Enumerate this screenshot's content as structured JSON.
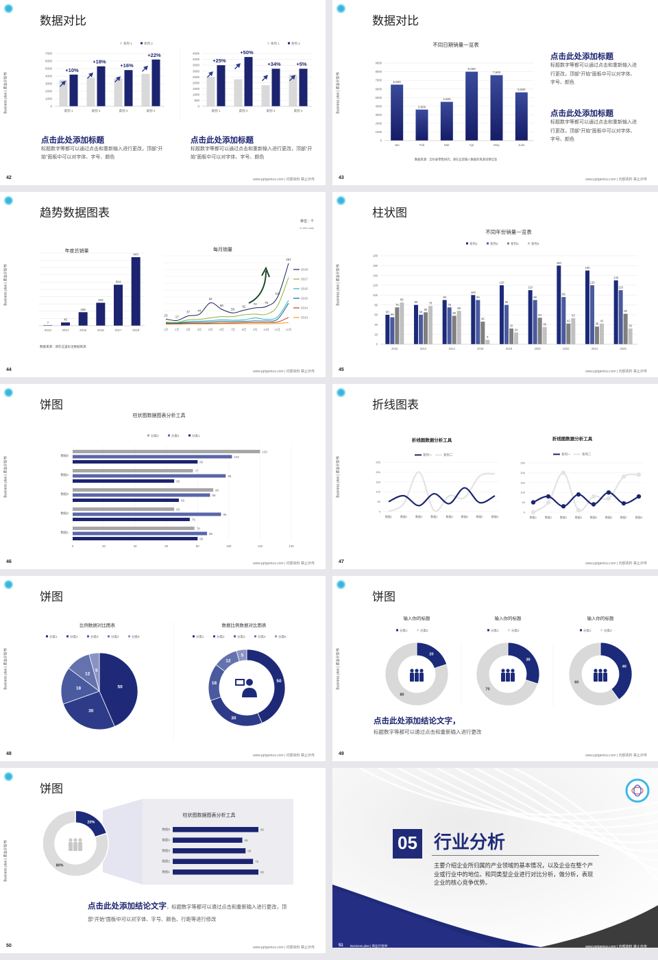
{
  "footer": {
    "url": "www.pptgenius.com | 内部资料 禁止外传",
    "side": "Business plan | 商业计划书"
  },
  "colors": {
    "navy": "#1c2470",
    "light_gray": "#d9d9d9",
    "background": "#e7e7eb"
  },
  "slides": [
    {
      "page": "42",
      "title": "数据对比",
      "blocks": [
        {
          "heading": "点击此处添加标题",
          "body": "标题数字等都可以通过点击和重新输入进行更改，顶部“开始”面板中可以对字体、字号、颜色"
        },
        {
          "heading": "点击此处添加标题",
          "body": "标题数字等都可以通过点击和重新输入进行更改，顶部“开始”面板中可以对字体、字号、颜色"
        }
      ]
    },
    {
      "page": "43",
      "title": "数据对比",
      "source": "数据来源：迈尔泰零售研究，请在这里输入数据的来源详情信息",
      "blocks": [
        {
          "heading": "点击此处添加标题",
          "body": "标题数字等都可以通过点击和重新输入进行更改，顶部“开始”面板中可以对字体、字号、颜色"
        },
        {
          "heading": "点击此处添加标题",
          "body": "标题数字等都可以通过点击和重新输入进行更改，顶部“开始”面板中可以对字体、字号、颜色"
        }
      ]
    },
    {
      "page": "44",
      "title": "趋势数据图表",
      "unit": "单位：个",
      "unit_en": "in 000 units",
      "source": "数据来源：请在这里标注数据来源"
    },
    {
      "page": "45",
      "title": "柱状图"
    },
    {
      "page": "46",
      "title": "饼图"
    },
    {
      "page": "47",
      "title": "折线图表"
    },
    {
      "page": "48",
      "title": "饼图"
    },
    {
      "page": "49",
      "title": "饼图",
      "conclusion": {
        "heading": "点击此处添加结论文字，",
        "body": "标题数字等都可以通过点击和重新输入进行更改"
      }
    },
    {
      "page": "50",
      "title": "饼图",
      "conclusion": {
        "heading": "点击此处添加结论文字",
        "body": "，标题数字等都可以通过点击和重新输入进行更改，顶部“开始”面板中可以对字体、字号、颜色、行距等进行修改"
      }
    },
    {
      "page": "51",
      "number": "05",
      "title": "行业分析",
      "description": "主要介绍企业所归属的产业领域的基本情况，以及企业在整个产业或行业中的地位。和同类型企业进行对比分析，做分析，表现企业的核心竞争优势。",
      "footer_label": "Business plan | 商业计划书"
    }
  ],
  "chart_data": [
    {
      "type": "bar",
      "categories": [
        "类别 1",
        "类别 2",
        "类别 3",
        "类别 4"
      ],
      "series": [
        {
          "name": "系列 1",
          "values": [
            3500,
            3800,
            3700,
            4300
          ],
          "color": "#d9d9d9"
        },
        {
          "name": "系列 2",
          "values": [
            4200,
            5300,
            4800,
            6200
          ],
          "color": "#1c2470"
        }
      ],
      "annotations": [
        "+10%",
        "+18%",
        "+16%",
        "+22%"
      ],
      "ylim": [
        0,
        7000
      ],
      "yticks": [
        0,
        1000,
        2000,
        3000,
        4000,
        5000,
        6000,
        7000
      ],
      "legend": "top-right",
      "grid": true
    },
    {
      "type": "bar",
      "categories": [
        "类别 1",
        "类别 2",
        "类别 3",
        "类别 4"
      ],
      "series": [
        {
          "name": "系列 1",
          "values": [
            2500,
            2300,
            1800,
            2700
          ],
          "color": "#d9d9d9"
        },
        {
          "name": "系列 2",
          "values": [
            3500,
            4200,
            3200,
            3200
          ],
          "color": "#1c2470"
        }
      ],
      "annotations": [
        "+25%",
        "+50%",
        "+34%",
        "+5%"
      ],
      "ylim": [
        0,
        4500
      ],
      "yticks": [
        0,
        500,
        1000,
        1500,
        2000,
        2500,
        3000,
        3500,
        4000,
        4500
      ],
      "legend": "top-right",
      "grid": true
    },
    {
      "type": "bar",
      "title": "不同日期销量一览表",
      "categories": [
        "Jan",
        "Feb",
        "Mar",
        "Apr",
        "May",
        "June"
      ],
      "series": [
        {
          "values": [
            6500,
            3600,
            4500,
            8000,
            7600,
            5600
          ],
          "color": "#1c2470"
        }
      ],
      "ylim": [
        0,
        9000
      ],
      "yticks": [
        0,
        1000,
        2000,
        3000,
        4000,
        5000,
        6000,
        7000,
        8000,
        9000
      ],
      "data_labels": true,
      "grid": true
    },
    {
      "type": "bar",
      "title": "年度总销量",
      "categories": [
        "2013",
        "2014",
        "2015",
        "2016",
        "2017",
        "2018"
      ],
      "series": [
        {
          "values": [
            7,
            45,
            186,
            316,
            564,
            943
          ],
          "color": "#1c2470"
        }
      ],
      "ylim": [
        0,
        1000
      ],
      "data_labels": true,
      "grid": true
    },
    {
      "type": "line",
      "title": "每月销量",
      "categories": [
        "1月",
        "2月",
        "3月",
        "4月",
        "5月",
        "6月",
        "7月",
        "8月",
        "9月",
        "10月",
        "11月",
        "12月"
      ],
      "series": [
        {
          "name": "2018",
          "color": "#1a1f5c",
          "values": [
            23,
            17,
            37,
            44,
            94,
            66,
            50,
            62,
            72,
            78,
            118,
            267
          ],
          "labels": true
        },
        {
          "name": "2017",
          "color": "#8cb43c",
          "values": [
            10,
            9,
            20,
            22,
            28,
            34,
            34,
            42,
            45,
            44,
            80,
            205
          ]
        },
        {
          "name": "2016",
          "color": "#2cb1c9",
          "values": [
            8,
            7,
            13,
            14,
            16,
            20,
            18,
            20,
            28,
            22,
            32,
            105
          ]
        },
        {
          "name": "2015",
          "color": "#1d5f8a",
          "values": [
            6,
            5,
            8,
            9,
            10,
            13,
            12,
            13,
            15,
            15,
            22,
            92
          ]
        },
        {
          "name": "2014",
          "color": "#b5441c",
          "values": [
            3,
            3,
            4,
            4,
            5,
            6,
            6,
            7,
            8,
            8,
            10,
            30
          ]
        },
        {
          "name": "2013",
          "color": "#f0a020",
          "values": [
            1,
            1,
            2,
            2,
            2,
            3,
            3,
            3,
            3,
            3,
            4,
            8
          ]
        }
      ],
      "ylim": [
        0,
        300
      ],
      "legend": "right",
      "smooth": true,
      "grid": true
    },
    {
      "type": "bar",
      "title": "不同年份销量一览表",
      "categories": [
        "2010",
        "2012",
        "2014",
        "2016",
        "2018",
        "2020",
        "2022",
        "2024",
        "2026"
      ],
      "series": [
        {
          "name": "系列1",
          "color": "#1b2a78",
          "values": [
            60,
            80,
            90,
            100,
            120,
            110,
            160,
            150,
            130
          ]
        },
        {
          "name": "系列2",
          "color": "#4a5a9e",
          "values": [
            55,
            60,
            75,
            90,
            80,
            90,
            96,
            120,
            110
          ]
        },
        {
          "name": "系列3",
          "color": "#7f7f7f",
          "values": [
            75,
            65,
            58,
            46,
            32,
            54,
            42,
            36,
            62
          ]
        },
        {
          "name": "系列4",
          "color": "#c0c0c0",
          "values": [
            85,
            78,
            68,
            9,
            24,
            35,
            53,
            42,
            32
          ]
        }
      ],
      "ylim": [
        0,
        180
      ],
      "yticks": [
        0,
        20,
        40,
        60,
        80,
        100,
        120,
        140,
        160,
        180
      ],
      "data_labels": true,
      "legend": "top",
      "grid": true
    },
    {
      "type": "bar",
      "orientation": "horizontal",
      "title": "柱状图数据图表分析工具",
      "categories": [
        "数据1",
        "数据2",
        "数据3",
        "数据4",
        "数据5"
      ],
      "series": [
        {
          "name": "分类1",
          "color": "#1c2470",
          "values": [
            80,
            75,
            68,
            65,
            80
          ]
        },
        {
          "name": "分类2",
          "color": "#5a66a8",
          "values": [
            86,
            95,
            88,
            98,
            102
          ]
        },
        {
          "name": "分类3",
          "color": "#a6a6a6",
          "values": [
            78,
            65,
            90,
            77,
            120
          ]
        }
      ],
      "xlim": [
        0,
        140
      ],
      "xticks": [
        0,
        20,
        40,
        60,
        80,
        100,
        120,
        140
      ],
      "data_labels": true,
      "legend": "top",
      "grid": true
    },
    {
      "type": "line",
      "title": "折线图数据分析工具",
      "categories": [
        "数据1",
        "数据2",
        "数据3",
        "数据4",
        "数据5",
        "数据6",
        "数据7",
        "数据8"
      ],
      "series": [
        {
          "name": "系列一",
          "color": "#1c2470",
          "values": [
            50,
            80,
            30,
            90,
            40,
            120,
            45,
            80
          ]
        },
        {
          "name": "系列二",
          "color": "#e3e3e3",
          "values": [
            0,
            40,
            200,
            5,
            80,
            70,
            180,
            190
          ]
        }
      ],
      "ylim": [
        0,
        250
      ],
      "yticks": [
        0,
        50,
        100,
        150,
        200,
        250
      ],
      "smooth": true,
      "legend": "top"
    },
    {
      "type": "line",
      "title": "折线图数据分析工具",
      "categories": [
        "数据1",
        "数据2",
        "数据3",
        "数据4",
        "数据5",
        "数据6",
        "数据7",
        "数据8"
      ],
      "series": [
        {
          "name": "系列一",
          "color": "#1c2470",
          "values": [
            50,
            80,
            30,
            90,
            40,
            100,
            45,
            80
          ]
        },
        {
          "name": "系列二",
          "color": "#e3e3e3",
          "values": [
            0,
            50,
            200,
            10,
            80,
            70,
            180,
            190
          ]
        }
      ],
      "ylim": [
        0,
        250
      ],
      "yticks": [
        0,
        50,
        100,
        150,
        200,
        250
      ],
      "smooth": true,
      "markers": true,
      "legend": "top"
    },
    {
      "type": "pie",
      "title": "比例数据对比图表",
      "categories": [
        "分类1",
        "分类2",
        "分类3",
        "分类4",
        "分类5"
      ],
      "values": [
        50,
        30,
        18,
        12,
        5
      ],
      "colors": [
        "#1e2a78",
        "#2e3b88",
        "#4a5a9e",
        "#6472ad",
        "#8a94c4"
      ],
      "legend": "top"
    },
    {
      "type": "pie",
      "donut": true,
      "title": "数据比例数据对比图表",
      "categories": [
        "分类1",
        "分类2",
        "分类3",
        "分类4",
        "分类5"
      ],
      "values": [
        50,
        30,
        18,
        12,
        5
      ],
      "colors": [
        "#1e2a78",
        "#2e3b88",
        "#4a5a9e",
        "#6472ad",
        "#8a94c4"
      ],
      "legend": "top"
    },
    {
      "type": "pie",
      "donut": true,
      "title": "输入你的标题",
      "categories": [
        "分类1",
        "分类2"
      ],
      "values": [
        20,
        80
      ],
      "colors": [
        "#1c2a7a",
        "#d9d9d9"
      ],
      "legend": "top"
    },
    {
      "type": "pie",
      "donut": true,
      "title": "输入你的标题",
      "categories": [
        "分类1",
        "分类2"
      ],
      "values": [
        30,
        70
      ],
      "colors": [
        "#1c2a7a",
        "#d9d9d9"
      ],
      "legend": "top"
    },
    {
      "type": "pie",
      "donut": true,
      "title": "输入你的标题",
      "categories": [
        "分类1",
        "分类2"
      ],
      "values": [
        40,
        60
      ],
      "colors": [
        "#1c2a7a",
        "#d9d9d9"
      ],
      "legend": "top"
    },
    {
      "type": "pie",
      "donut": true,
      "values": [
        20,
        80
      ],
      "labels": [
        "20%",
        "80%"
      ],
      "colors": [
        "#1c2a7a",
        "#dcdcdc"
      ]
    },
    {
      "type": "bar",
      "orientation": "horizontal",
      "title": "柱状图数据图表分析工具",
      "categories": [
        "数据1",
        "数据2",
        "数据3",
        "数据4",
        "数据5"
      ],
      "series": [
        {
          "color": "#1c2470",
          "values": [
            80,
            75,
            68,
            65,
            80
          ]
        }
      ],
      "data_labels": true
    }
  ]
}
